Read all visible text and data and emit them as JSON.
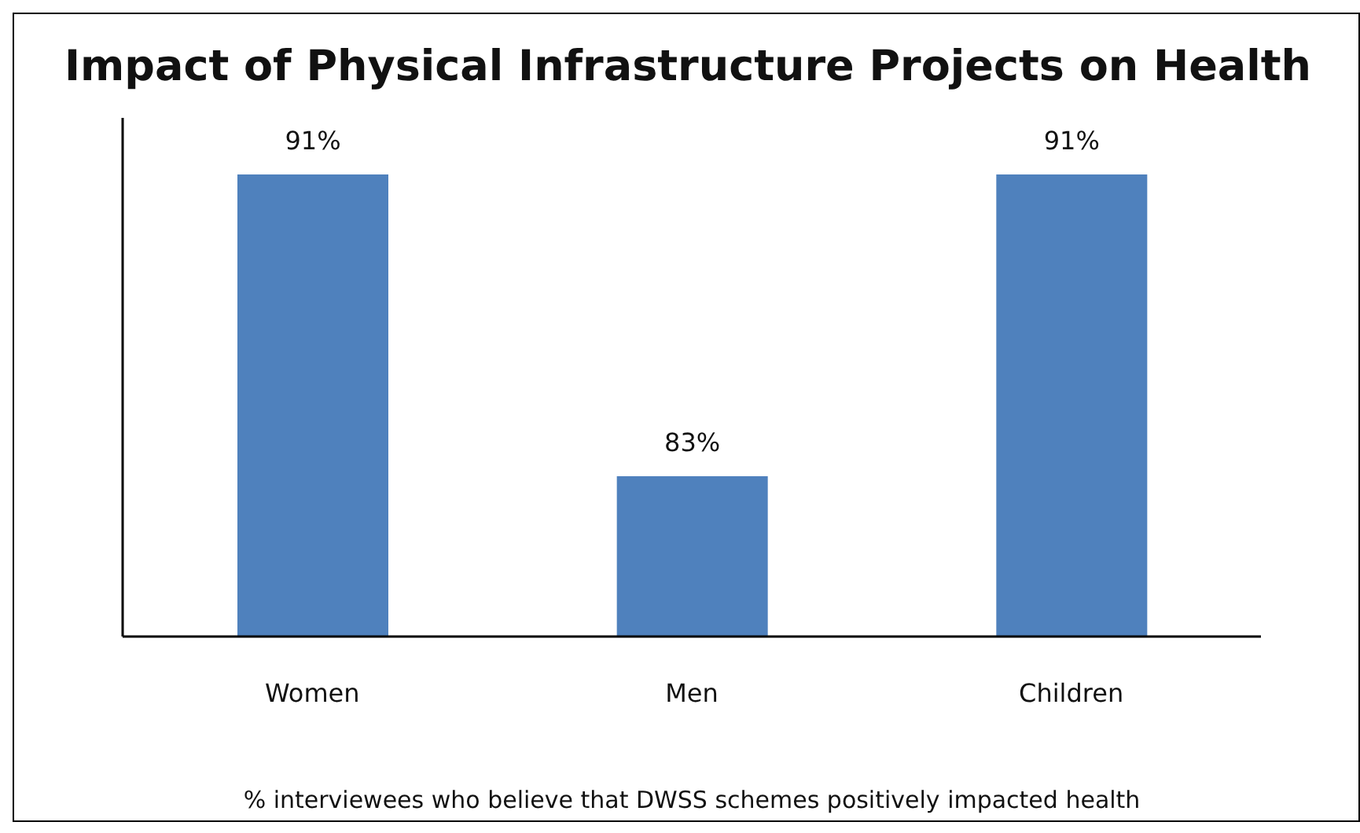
{
  "chart_data": {
    "type": "bar",
    "title": "Impact of Physical Infrastructure Projects on Health",
    "xlabel": "% interviewees who believe that DWSS schemes positively  impacted health",
    "categories": [
      "Women",
      "Men",
      "Children"
    ],
    "values": [
      91,
      83,
      91
    ],
    "value_labels": [
      "91%",
      "83%",
      "91%"
    ],
    "color": "#4f81bd",
    "ylim": [
      78.75,
      92.5
    ],
    "tick_labels": "x"
  }
}
